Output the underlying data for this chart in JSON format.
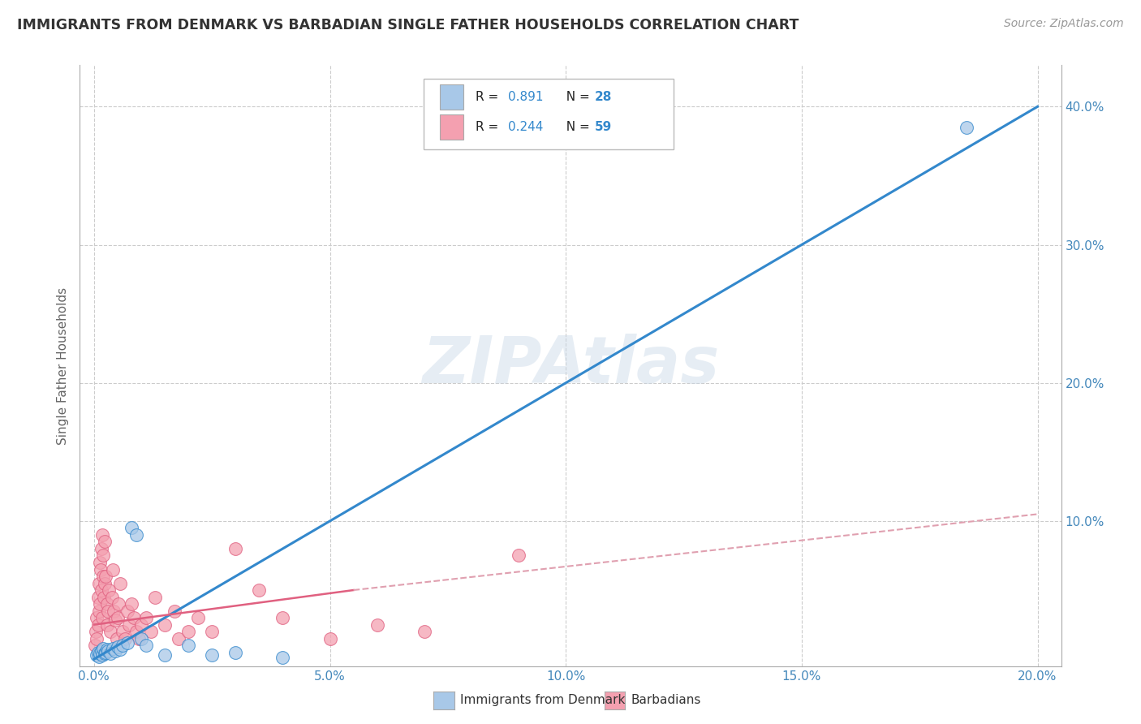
{
  "title": "IMMIGRANTS FROM DENMARK VS BARBADIAN SINGLE FATHER HOUSEHOLDS CORRELATION CHART",
  "source": "Source: ZipAtlas.com",
  "ylabel": "Single Father Households",
  "x_tick_labels": [
    "0.0%",
    "5.0%",
    "10.0%",
    "15.0%",
    "20.0%"
  ],
  "x_tick_vals": [
    0.0,
    5.0,
    10.0,
    15.0,
    20.0
  ],
  "y_tick_labels": [
    "10.0%",
    "20.0%",
    "30.0%",
    "40.0%"
  ],
  "y_tick_vals": [
    10.0,
    20.0,
    30.0,
    40.0
  ],
  "xlim": [
    -0.3,
    20.5
  ],
  "ylim": [
    -0.5,
    43.0
  ],
  "legend_label_1": "Immigrants from Denmark",
  "legend_label_2": "Barbadians",
  "legend_R1": "R = ",
  "legend_R1_val": "0.891",
  "legend_N1_label": "N = ",
  "legend_N1_val": "28",
  "legend_R2": "R = ",
  "legend_R2_val": "0.244",
  "legend_N2_label": "N = ",
  "legend_N2_val": "59",
  "color_denmark": "#a8c8e8",
  "color_barbadian": "#f4a0b0",
  "color_denmark_line": "#3388cc",
  "color_barbadian_line": "#e06080",
  "color_barbadian_dash": "#e0a0b0",
  "watermark": "ZIPAtlas",
  "denmark_x": [
    0.05,
    0.08,
    0.1,
    0.12,
    0.15,
    0.18,
    0.2,
    0.22,
    0.25,
    0.28,
    0.3,
    0.35,
    0.4,
    0.45,
    0.5,
    0.55,
    0.6,
    0.7,
    0.8,
    0.9,
    1.0,
    1.1,
    1.5,
    2.0,
    2.5,
    3.0,
    4.0,
    18.5
  ],
  "denmark_y": [
    0.3,
    0.5,
    0.2,
    0.4,
    0.6,
    0.3,
    0.8,
    0.4,
    0.5,
    0.7,
    0.6,
    0.4,
    0.8,
    0.6,
    0.9,
    0.7,
    1.0,
    1.2,
    9.5,
    9.0,
    1.5,
    1.0,
    0.3,
    1.0,
    0.3,
    0.5,
    0.1,
    38.5
  ],
  "barbadian_x": [
    0.02,
    0.04,
    0.05,
    0.06,
    0.08,
    0.09,
    0.1,
    0.11,
    0.12,
    0.13,
    0.14,
    0.15,
    0.16,
    0.17,
    0.18,
    0.19,
    0.2,
    0.21,
    0.22,
    0.23,
    0.25,
    0.27,
    0.28,
    0.3,
    0.32,
    0.35,
    0.38,
    0.4,
    0.42,
    0.45,
    0.48,
    0.5,
    0.52,
    0.55,
    0.6,
    0.65,
    0.7,
    0.75,
    0.8,
    0.85,
    0.9,
    0.95,
    1.0,
    1.1,
    1.2,
    1.3,
    1.5,
    1.7,
    1.8,
    2.0,
    2.2,
    2.5,
    3.0,
    3.5,
    4.0,
    5.0,
    6.0,
    7.0,
    9.0
  ],
  "barbadian_y": [
    1.0,
    2.0,
    3.0,
    1.5,
    4.5,
    2.5,
    5.5,
    3.5,
    7.0,
    4.0,
    6.5,
    5.0,
    8.0,
    3.0,
    9.0,
    6.0,
    7.5,
    4.5,
    8.5,
    5.5,
    6.0,
    4.0,
    2.5,
    3.5,
    5.0,
    2.0,
    4.5,
    6.5,
    3.5,
    2.8,
    1.5,
    3.0,
    4.0,
    5.5,
    2.0,
    1.5,
    3.5,
    2.5,
    4.0,
    3.0,
    2.0,
    1.5,
    2.5,
    3.0,
    2.0,
    4.5,
    2.5,
    3.5,
    1.5,
    2.0,
    3.0,
    2.0,
    8.0,
    5.0,
    3.0,
    1.5,
    2.5,
    2.0,
    7.5
  ]
}
